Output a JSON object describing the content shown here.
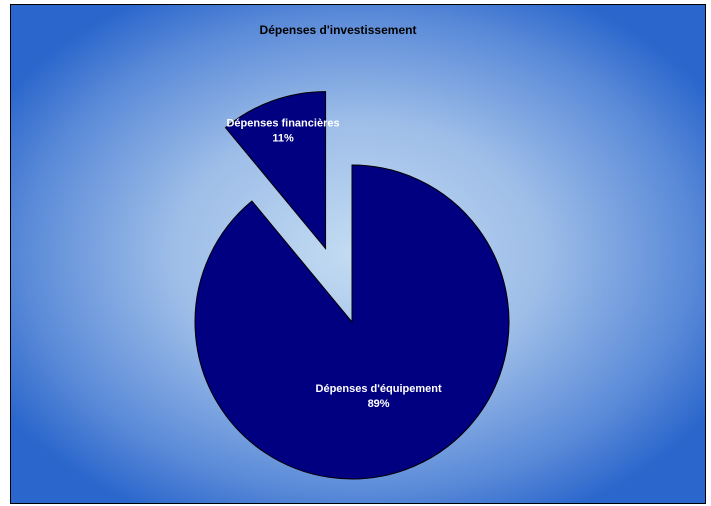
{
  "chart_data": {
    "type": "pie",
    "title": "Dépenses d'investissement",
    "categories": [
      "Dépenses d'équipement",
      "Dépenses financières"
    ],
    "values": [
      89,
      11
    ],
    "value_labels": [
      "89%",
      "11%"
    ],
    "colors": [
      "#000080",
      "#000080"
    ],
    "exploded": [
      false,
      true
    ]
  }
}
